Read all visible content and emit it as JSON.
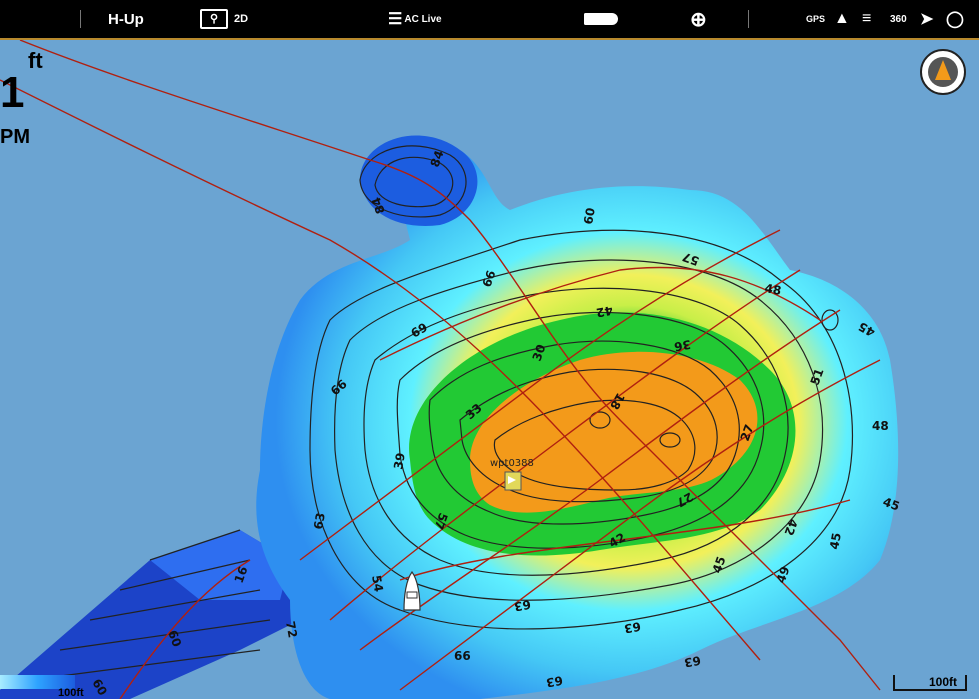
{
  "topbar": {
    "orientation": "H-Up",
    "view_mode": "2D",
    "ac_live": "AC Live",
    "gps": "GPS",
    "sonar_360": "360"
  },
  "readout": {
    "unit": "ft",
    "depth_digit": "1",
    "speed_unit_fragment": "PM"
  },
  "waypoint": {
    "name": "wpt0388"
  },
  "scale": {
    "label": "100ft"
  },
  "legend": {
    "label": "100ft"
  },
  "colors": {
    "water": "#6ba4d2",
    "deep": "#1c43c8",
    "mid_blue": "#2e8ff0",
    "light_blue": "#45d5f5",
    "cyan": "#5ff0ff",
    "yellow": "#f2f05a",
    "green": "#22c934",
    "orange": "#f39a1a",
    "contour": "#222222",
    "track": "#b02010"
  },
  "depth_labels": [
    "84",
    "84",
    "60",
    "66",
    "57",
    "48",
    "42",
    "69",
    "45",
    "36",
    "30",
    "66",
    "51",
    "33",
    "18",
    "27",
    "48",
    "39",
    "27",
    "45",
    "57",
    "42",
    "63",
    "42",
    "45",
    "16",
    "54",
    "45",
    "49",
    "72",
    "63",
    "63",
    "60",
    "66",
    "63",
    "63",
    "60"
  ]
}
